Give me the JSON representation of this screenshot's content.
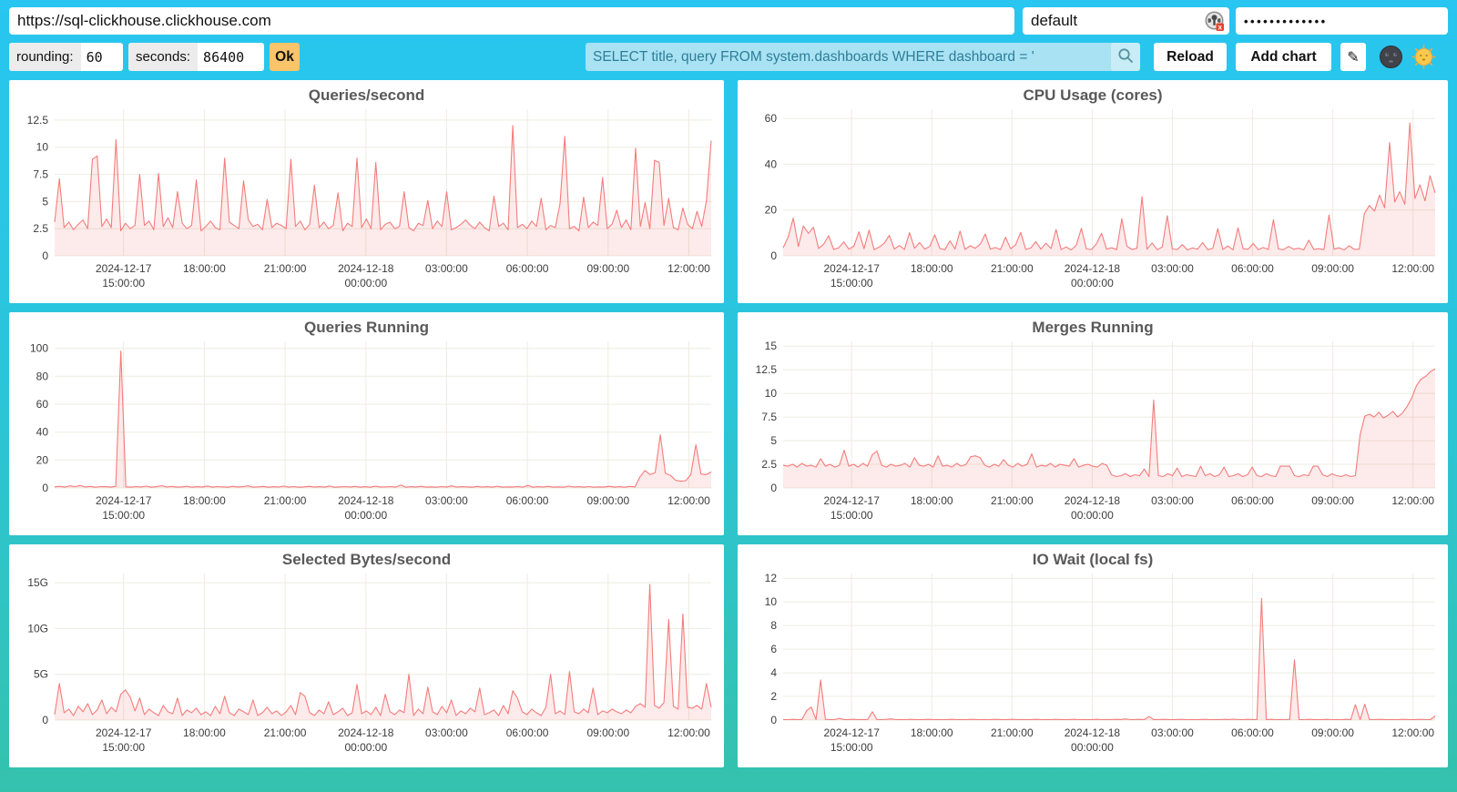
{
  "topbar": {
    "url_value": "https://sql-clickhouse.clickhouse.com",
    "user_value": "default",
    "password_value": "•••••••••••••"
  },
  "toolbar": {
    "rounding_label": "rounding:",
    "rounding_value": "60",
    "seconds_label": "seconds:",
    "seconds_value": "86400",
    "ok_label": "Ok",
    "query_value": "SELECT title, query FROM system.dashboards WHERE dashboard = '",
    "reload_label": "Reload",
    "add_chart_label": "Add chart",
    "edit_glyph": "✎",
    "icons": {
      "query_search": "search-icon",
      "credentials": "password-manager-icon",
      "dark_theme": "moon-icon",
      "light_theme": "sun-icon"
    }
  },
  "colors": {
    "background_top": "#28c6f0",
    "background_bottom": "#35c2ad",
    "ok_button": "#f9c46a",
    "query_input_bg": "#a9e2f3",
    "query_text": "#2d7e99",
    "line": "#f47c7c",
    "fill": "rgba(244,124,124,0.16)",
    "grid": "#eeebe0",
    "title_text": "#595959"
  },
  "chart_data": [
    {
      "type": "area",
      "title": "Queries/second",
      "ylim": [
        0,
        13.5
      ],
      "yticks": [
        0,
        2.5,
        5,
        7.5,
        10,
        12.5
      ],
      "ytick_labels": [
        "0",
        "2.5",
        "5",
        "7.5",
        "10",
        "12.5"
      ],
      "xticks": [
        {
          "p": 0.105,
          "l": [
            "2024-12-17",
            "15:00:00"
          ]
        },
        {
          "p": 0.228,
          "l": [
            "18:00:00"
          ]
        },
        {
          "p": 0.351,
          "l": [
            "21:00:00"
          ]
        },
        {
          "p": 0.474,
          "l": [
            "2024-12-18",
            "00:00:00"
          ]
        },
        {
          "p": 0.597,
          "l": [
            "03:00:00"
          ]
        },
        {
          "p": 0.72,
          "l": [
            "06:00:00"
          ]
        },
        {
          "p": 0.843,
          "l": [
            "09:00:00"
          ]
        },
        {
          "p": 0.966,
          "l": [
            "12:00:00"
          ]
        }
      ],
      "values": [
        3.1,
        7.1,
        2.6,
        3.1,
        2.4,
        2.9,
        3.3,
        2.5,
        8.9,
        9.2,
        2.7,
        3.4,
        2.6,
        10.7,
        2.3,
        3.0,
        2.5,
        2.8,
        7.5,
        2.8,
        3.2,
        2.4,
        7.6,
        2.7,
        3.5,
        2.6,
        5.9,
        3.0,
        2.5,
        2.8,
        7.0,
        2.3,
        2.7,
        3.2,
        2.6,
        2.4,
        9.0,
        3.1,
        2.8,
        2.5,
        6.9,
        3.3,
        2.7,
        2.9,
        2.4,
        5.2,
        2.6,
        3.0,
        2.8,
        2.5,
        8.9,
        2.7,
        3.2,
        2.4,
        2.9,
        6.5,
        2.6,
        3.1,
        2.5,
        2.8,
        5.8,
        2.3,
        3.0,
        2.7,
        9.0,
        2.6,
        3.4,
        2.5,
        8.6,
        2.4,
        2.9,
        3.1,
        2.5,
        2.7,
        5.9,
        2.6,
        2.3,
        3.0,
        2.8,
        5.1,
        2.5,
        3.2,
        2.7,
        5.9,
        2.4,
        2.6,
        2.9,
        3.3,
        2.8,
        2.5,
        3.1,
        2.6,
        2.3,
        5.5,
        2.7,
        3.0,
        2.4,
        12.0,
        2.6,
        2.9,
        2.5,
        3.2,
        2.7,
        5.3,
        2.4,
        2.8,
        2.6,
        4.8,
        11.0,
        2.5,
        2.7,
        2.3,
        5.4,
        2.6,
        3.1,
        2.8,
        7.2,
        2.5,
        2.9,
        4.2,
        2.6,
        3.3,
        2.4,
        9.9,
        2.7,
        4.9,
        2.5,
        8.8,
        8.6,
        2.8,
        5.3,
        2.6,
        2.4,
        4.4,
        2.9,
        2.5,
        4.1,
        2.7,
        5.1,
        10.6
      ]
    },
    {
      "type": "area",
      "title": "CPU Usage (cores)",
      "ylim": [
        0,
        64
      ],
      "yticks": [
        0,
        20,
        40,
        60
      ],
      "ytick_labels": [
        "0",
        "20",
        "40",
        "60"
      ],
      "xticks": [
        {
          "p": 0.105,
          "l": [
            "2024-12-17",
            "15:00:00"
          ]
        },
        {
          "p": 0.228,
          "l": [
            "18:00:00"
          ]
        },
        {
          "p": 0.351,
          "l": [
            "21:00:00"
          ]
        },
        {
          "p": 0.474,
          "l": [
            "2024-12-18",
            "00:00:00"
          ]
        },
        {
          "p": 0.597,
          "l": [
            "03:00:00"
          ]
        },
        {
          "p": 0.72,
          "l": [
            "06:00:00"
          ]
        },
        {
          "p": 0.843,
          "l": [
            "09:00:00"
          ]
        },
        {
          "p": 0.966,
          "l": [
            "12:00:00"
          ]
        }
      ],
      "values": [
        3.5,
        8.2,
        16.5,
        4.1,
        13.0,
        9.8,
        12.5,
        3.2,
        5.0,
        8.8,
        2.8,
        3.5,
        6.1,
        2.9,
        4.2,
        10.5,
        3.1,
        11.2,
        2.7,
        3.8,
        5.5,
        8.9,
        3.0,
        4.5,
        2.8,
        10.1,
        3.3,
        5.8,
        2.9,
        4.1,
        9.2,
        3.2,
        2.7,
        6.5,
        3.0,
        10.8,
        2.8,
        4.4,
        3.3,
        5.1,
        9.5,
        2.9,
        3.6,
        2.7,
        8.1,
        3.1,
        4.8,
        10.2,
        2.8,
        3.4,
        6.2,
        2.9,
        5.5,
        3.2,
        11.5,
        2.7,
        3.9,
        2.6,
        4.6,
        12.0,
        3.0,
        2.8,
        5.2,
        9.8,
        2.9,
        3.5,
        2.7,
        16.2,
        4.2,
        2.8,
        3.3,
        25.8,
        2.9,
        5.6,
        2.7,
        3.8,
        17.5,
        3.0,
        2.8,
        4.9,
        2.6,
        3.4,
        2.9,
        5.8,
        2.7,
        3.2,
        11.8,
        2.8,
        4.3,
        2.6,
        12.2,
        3.1,
        2.9,
        5.4,
        2.7,
        3.6,
        2.8,
        15.8,
        3.0,
        2.7,
        4.1,
        2.9,
        3.3,
        2.6,
        6.8,
        2.8,
        3.1,
        2.7,
        17.8,
        2.9,
        3.5,
        2.6,
        4.4,
        2.8,
        2.9,
        18.5,
        22.0,
        19.5,
        26.5,
        21.0,
        49.5,
        23.5,
        28.0,
        22.5,
        58.0,
        25.0,
        31.0,
        24.0,
        35.0,
        27.5
      ]
    },
    {
      "type": "area",
      "title": "Queries Running",
      "ylim": [
        0,
        105
      ],
      "yticks": [
        0,
        20,
        40,
        60,
        80,
        100
      ],
      "ytick_labels": [
        "0",
        "20",
        "40",
        "60",
        "80",
        "100"
      ],
      "xticks": [
        {
          "p": 0.105,
          "l": [
            "2024-12-17",
            "15:00:00"
          ]
        },
        {
          "p": 0.228,
          "l": [
            "18:00:00"
          ]
        },
        {
          "p": 0.351,
          "l": [
            "21:00:00"
          ]
        },
        {
          "p": 0.474,
          "l": [
            "2024-12-18",
            "00:00:00"
          ]
        },
        {
          "p": 0.597,
          "l": [
            "03:00:00"
          ]
        },
        {
          "p": 0.72,
          "l": [
            "06:00:00"
          ]
        },
        {
          "p": 0.843,
          "l": [
            "09:00:00"
          ]
        },
        {
          "p": 0.966,
          "l": [
            "12:00:00"
          ]
        }
      ],
      "values": [
        0.8,
        1.2,
        0.6,
        1.5,
        0.9,
        1.8,
        0.7,
        1.1,
        0.5,
        1.0,
        0.9,
        0.6,
        1.2,
        98.0,
        0.8,
        0.6,
        1.0,
        0.7,
        1.3,
        0.5,
        0.9,
        1.6,
        0.7,
        1.1,
        0.6,
        0.8,
        1.2,
        0.5,
        0.9,
        0.7,
        1.4,
        0.6,
        1.0,
        0.8,
        0.5,
        1.2,
        0.7,
        0.9,
        1.5,
        0.6,
        0.8,
        1.1,
        0.5,
        0.9,
        0.7,
        1.3,
        0.6,
        1.0,
        0.5,
        0.8,
        1.2,
        0.7,
        0.9,
        0.6,
        1.4,
        0.5,
        0.8,
        1.0,
        0.7,
        1.1,
        0.6,
        0.9,
        0.5,
        1.3,
        0.7,
        0.8,
        1.0,
        0.6,
        2.1,
        0.5,
        0.9,
        0.7,
        1.2,
        0.6,
        0.8,
        0.5,
        1.0,
        0.7,
        1.5,
        0.6,
        0.9,
        0.8,
        0.5,
        1.1,
        0.7,
        0.9,
        0.6,
        1.2,
        0.5,
        0.8,
        0.7,
        1.0,
        0.6,
        1.8,
        0.5,
        0.9,
        0.7,
        1.1,
        0.6,
        0.8,
        0.5,
        1.3,
        0.7,
        0.9,
        0.6,
        1.0,
        0.5,
        0.8,
        0.7,
        1.2,
        0.6,
        0.9,
        0.5,
        1.1,
        0.7,
        8.0,
        12.5,
        9.5,
        11.0,
        38.0,
        10.5,
        9.0,
        5.5,
        4.8,
        5.2,
        9.5,
        31.0,
        10.0,
        9.5,
        11.5
      ]
    },
    {
      "type": "area",
      "title": "Merges Running",
      "ylim": [
        0,
        15.5
      ],
      "yticks": [
        0,
        2.5,
        5,
        7.5,
        10,
        12.5,
        15
      ],
      "ytick_labels": [
        "0",
        "2.5",
        "5",
        "7.5",
        "10",
        "12.5",
        "15"
      ],
      "xticks": [
        {
          "p": 0.105,
          "l": [
            "2024-12-17",
            "15:00:00"
          ]
        },
        {
          "p": 0.228,
          "l": [
            "18:00:00"
          ]
        },
        {
          "p": 0.351,
          "l": [
            "21:00:00"
          ]
        },
        {
          "p": 0.474,
          "l": [
            "2024-12-18",
            "00:00:00"
          ]
        },
        {
          "p": 0.597,
          "l": [
            "03:00:00"
          ]
        },
        {
          "p": 0.72,
          "l": [
            "06:00:00"
          ]
        },
        {
          "p": 0.843,
          "l": [
            "09:00:00"
          ]
        },
        {
          "p": 0.966,
          "l": [
            "12:00:00"
          ]
        }
      ],
      "values": [
        2.4,
        2.3,
        2.5,
        2.2,
        2.6,
        2.3,
        2.4,
        2.2,
        3.1,
        2.3,
        2.5,
        2.2,
        2.4,
        4.0,
        2.3,
        2.5,
        2.2,
        2.6,
        2.3,
        3.5,
        3.9,
        2.4,
        2.2,
        2.5,
        2.3,
        2.4,
        2.6,
        2.2,
        3.2,
        2.4,
        2.3,
        2.5,
        2.2,
        3.4,
        2.3,
        2.4,
        2.2,
        2.6,
        2.3,
        2.5,
        3.3,
        3.4,
        3.2,
        2.4,
        2.2,
        2.5,
        2.3,
        3.0,
        2.4,
        2.2,
        2.6,
        2.3,
        2.5,
        3.6,
        2.2,
        2.4,
        2.3,
        2.6,
        2.2,
        2.5,
        2.4,
        2.3,
        3.1,
        2.2,
        2.4,
        2.5,
        2.3,
        2.2,
        2.6,
        2.4,
        1.4,
        1.2,
        1.3,
        1.5,
        1.2,
        1.4,
        1.3,
        2.0,
        1.2,
        9.3,
        1.3,
        1.2,
        1.5,
        1.3,
        2.1,
        1.2,
        1.4,
        1.3,
        1.2,
        2.3,
        1.3,
        1.5,
        1.2,
        1.4,
        2.2,
        1.2,
        1.3,
        1.5,
        1.2,
        1.4,
        2.2,
        1.3,
        1.2,
        1.5,
        1.3,
        1.2,
        2.3,
        2.3,
        2.3,
        1.3,
        1.2,
        1.4,
        1.3,
        2.3,
        2.3,
        1.4,
        1.2,
        1.5,
        1.3,
        1.2,
        1.4,
        1.2,
        1.3,
        5.6,
        7.6,
        7.8,
        7.5,
        8.0,
        7.4,
        7.7,
        8.1,
        7.5,
        7.9,
        8.6,
        9.5,
        10.8,
        11.5,
        11.8,
        12.3,
        12.6
      ]
    },
    {
      "type": "area",
      "title": "Selected Bytes/second",
      "ylim": [
        0,
        16
      ],
      "yticks": [
        0,
        5,
        10,
        15
      ],
      "ytick_labels": [
        "0",
        "5G",
        "10G",
        "15G"
      ],
      "xticks": [
        {
          "p": 0.105,
          "l": [
            "2024-12-17",
            "15:00:00"
          ]
        },
        {
          "p": 0.228,
          "l": [
            "18:00:00"
          ]
        },
        {
          "p": 0.351,
          "l": [
            "21:00:00"
          ]
        },
        {
          "p": 0.474,
          "l": [
            "2024-12-18",
            "00:00:00"
          ]
        },
        {
          "p": 0.597,
          "l": [
            "03:00:00"
          ]
        },
        {
          "p": 0.72,
          "l": [
            "06:00:00"
          ]
        },
        {
          "p": 0.843,
          "l": [
            "09:00:00"
          ]
        },
        {
          "p": 0.966,
          "l": [
            "12:00:00"
          ]
        }
      ],
      "values": [
        0.6,
        4.0,
        0.8,
        1.2,
        0.5,
        1.5,
        0.9,
        1.8,
        0.6,
        1.1,
        2.2,
        0.7,
        1.4,
        0.9,
        2.8,
        3.3,
        2.5,
        1.0,
        2.4,
        0.6,
        1.2,
        0.8,
        0.5,
        1.6,
        0.9,
        0.7,
        2.4,
        0.5,
        1.1,
        0.8,
        1.3,
        0.6,
        0.9,
        0.5,
        1.5,
        0.7,
        2.6,
        0.8,
        0.5,
        1.2,
        0.9,
        0.6,
        2.2,
        0.5,
        0.8,
        1.4,
        0.7,
        1.0,
        0.5,
        0.9,
        1.6,
        0.6,
        3.0,
        2.6,
        0.8,
        0.5,
        1.1,
        0.7,
        2.0,
        0.6,
        0.9,
        1.3,
        0.5,
        0.8,
        3.9,
        0.7,
        1.0,
        0.6,
        1.4,
        0.5,
        2.8,
        0.9,
        0.6,
        1.1,
        0.8,
        5.0,
        0.5,
        1.2,
        0.7,
        3.6,
        0.9,
        0.6,
        1.5,
        0.8,
        2.2,
        0.5,
        1.0,
        0.7,
        1.3,
        0.9,
        3.5,
        0.6,
        0.8,
        1.1,
        0.5,
        1.6,
        0.7,
        3.2,
        2.4,
        0.9,
        0.6,
        1.2,
        0.8,
        0.5,
        1.4,
        5.0,
        0.7,
        1.0,
        0.6,
        5.3,
        0.9,
        0.7,
        1.2,
        0.8,
        3.5,
        0.6,
        1.0,
        0.8,
        1.2,
        0.9,
        0.7,
        1.1,
        0.8,
        1.5,
        1.8,
        1.4,
        14.8,
        1.6,
        1.3,
        1.9,
        11.0,
        1.5,
        1.2,
        11.6,
        1.4,
        1.3,
        1.6,
        1.2,
        4.0,
        1.4
      ]
    },
    {
      "type": "area",
      "title": "IO Wait (local fs)",
      "ylim": [
        0,
        12.4
      ],
      "yticks": [
        0,
        2,
        4,
        6,
        8,
        10,
        12
      ],
      "ytick_labels": [
        "0",
        "2",
        "4",
        "6",
        "8",
        "10",
        "12"
      ],
      "xticks": [
        {
          "p": 0.105,
          "l": [
            "2024-12-17",
            "15:00:00"
          ]
        },
        {
          "p": 0.228,
          "l": [
            "18:00:00"
          ]
        },
        {
          "p": 0.351,
          "l": [
            "21:00:00"
          ]
        },
        {
          "p": 0.474,
          "l": [
            "2024-12-18",
            "00:00:00"
          ]
        },
        {
          "p": 0.597,
          "l": [
            "03:00:00"
          ]
        },
        {
          "p": 0.72,
          "l": [
            "06:00:00"
          ]
        },
        {
          "p": 0.843,
          "l": [
            "09:00:00"
          ]
        },
        {
          "p": 0.966,
          "l": [
            "12:00:00"
          ]
        }
      ],
      "values": [
        0.05,
        0.04,
        0.06,
        0.05,
        0.04,
        0.8,
        1.1,
        0.05,
        3.4,
        0.06,
        0.04,
        0.05,
        0.15,
        0.04,
        0.05,
        0.06,
        0.04,
        0.05,
        0.04,
        0.7,
        0.05,
        0.04,
        0.06,
        0.1,
        0.04,
        0.05,
        0.04,
        0.06,
        0.05,
        0.04,
        0.05,
        0.06,
        0.04,
        0.05,
        0.04,
        0.05,
        0.06,
        0.04,
        0.05,
        0.04,
        0.06,
        0.05,
        0.04,
        0.05,
        0.04,
        0.06,
        0.05,
        0.04,
        0.05,
        0.06,
        0.04,
        0.05,
        0.04,
        0.05,
        0.06,
        0.04,
        0.05,
        0.04,
        0.06,
        0.05,
        0.04,
        0.05,
        0.06,
        0.04,
        0.05,
        0.04,
        0.05,
        0.06,
        0.04,
        0.05,
        0.04,
        0.06,
        0.05,
        0.1,
        0.04,
        0.05,
        0.06,
        0.04,
        0.3,
        0.05,
        0.04,
        0.06,
        0.05,
        0.04,
        0.05,
        0.06,
        0.04,
        0.05,
        0.04,
        0.05,
        0.06,
        0.04,
        0.05,
        0.04,
        0.06,
        0.05,
        0.08,
        0.05,
        0.04,
        0.06,
        0.05,
        0.04,
        10.3,
        0.05,
        0.06,
        0.04,
        0.05,
        0.04,
        0.06,
        5.1,
        0.05,
        0.04,
        0.06,
        0.05,
        0.04,
        0.05,
        0.06,
        0.04,
        0.05,
        0.04,
        0.06,
        0.05,
        1.3,
        0.04,
        1.35,
        0.05,
        0.04,
        0.06,
        0.05,
        0.04,
        0.05,
        0.04,
        0.06,
        0.05,
        0.04,
        0.05,
        0.06,
        0.04,
        0.05,
        0.35
      ]
    }
  ]
}
